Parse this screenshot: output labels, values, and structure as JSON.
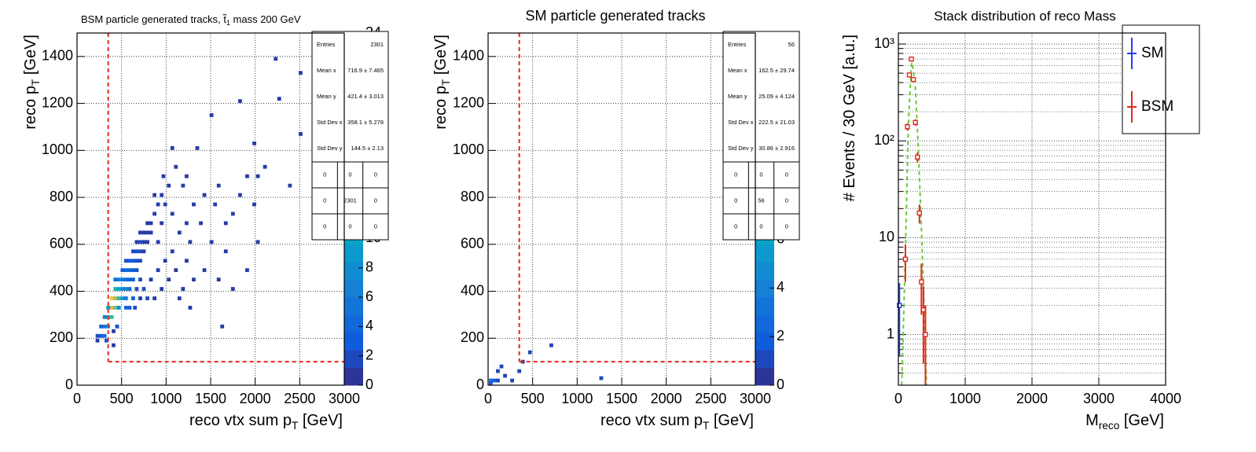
{
  "chart_data": [
    {
      "type": "heatmap",
      "title": [
        "BSM particle generated tracks, t̃",
        "1",
        " mass 200 GeV"
      ],
      "x_label": [
        "reco vtx sum p",
        "T",
        " [GeV]"
      ],
      "y_label": [
        "reco p",
        "T",
        " [GeV]"
      ],
      "xlim": [
        0,
        3000
      ],
      "xticks": [
        0,
        500,
        1000,
        1500,
        2000,
        2500,
        3000
      ],
      "ylim": [
        0,
        1500
      ],
      "yticks": [
        0,
        200,
        400,
        600,
        800,
        1000,
        1200,
        1400
      ],
      "zlim": [
        0,
        24
      ],
      "zticks": [
        0,
        2,
        4,
        6,
        8,
        10,
        12,
        14,
        16,
        18,
        20,
        22,
        24
      ],
      "grid": true,
      "cells": [
        [
          270,
          210,
          3
        ],
        [
          310,
          210,
          5
        ],
        [
          310,
          250,
          6
        ],
        [
          350,
          250,
          8
        ],
        [
          350,
          290,
          12
        ],
        [
          390,
          290,
          14
        ],
        [
          390,
          330,
          20
        ],
        [
          430,
          330,
          16
        ],
        [
          390,
          370,
          22
        ],
        [
          430,
          370,
          18
        ],
        [
          470,
          370,
          14
        ],
        [
          430,
          410,
          12
        ],
        [
          470,
          410,
          10
        ],
        [
          510,
          410,
          8
        ],
        [
          350,
          330,
          10
        ],
        [
          310,
          290,
          7
        ],
        [
          270,
          250,
          4
        ],
        [
          230,
          210,
          2
        ],
        [
          230,
          190,
          1
        ],
        [
          470,
          330,
          8
        ],
        [
          510,
          370,
          9
        ],
        [
          550,
          370,
          6
        ],
        [
          550,
          410,
          7
        ],
        [
          590,
          410,
          5
        ],
        [
          510,
          450,
          6
        ],
        [
          550,
          450,
          5
        ],
        [
          590,
          450,
          4
        ],
        [
          630,
          450,
          3
        ],
        [
          470,
          450,
          7
        ],
        [
          430,
          450,
          5
        ],
        [
          590,
          490,
          4
        ],
        [
          630,
          490,
          3
        ],
        [
          550,
          490,
          4
        ],
        [
          510,
          490,
          3
        ],
        [
          670,
          490,
          2
        ],
        [
          630,
          530,
          3
        ],
        [
          670,
          530,
          2
        ],
        [
          710,
          530,
          2
        ],
        [
          590,
          530,
          3
        ],
        [
          550,
          530,
          2
        ],
        [
          670,
          570,
          2
        ],
        [
          710,
          570,
          2
        ],
        [
          750,
          570,
          1
        ],
        [
          630,
          570,
          2
        ],
        [
          710,
          610,
          2
        ],
        [
          750,
          610,
          1
        ],
        [
          790,
          610,
          1
        ],
        [
          670,
          610,
          1
        ],
        [
          750,
          650,
          1
        ],
        [
          790,
          650,
          1
        ],
        [
          830,
          650,
          1
        ],
        [
          710,
          650,
          1
        ],
        [
          790,
          690,
          1
        ],
        [
          830,
          690,
          1
        ],
        [
          870,
          730,
          1
        ],
        [
          910,
          770,
          1
        ],
        [
          950,
          810,
          1
        ],
        [
          870,
          810,
          1
        ],
        [
          1030,
          850,
          1
        ],
        [
          990,
          770,
          1
        ],
        [
          1070,
          730,
          1
        ],
        [
          950,
          690,
          1
        ],
        [
          910,
          610,
          1
        ],
        [
          1150,
          650,
          1
        ],
        [
          1230,
          690,
          1
        ],
        [
          1310,
          770,
          1
        ],
        [
          1270,
          610,
          1
        ],
        [
          1390,
          690,
          1
        ],
        [
          1430,
          810,
          1
        ],
        [
          1550,
          770,
          1
        ],
        [
          1590,
          850,
          1
        ],
        [
          1670,
          690,
          1
        ],
        [
          1750,
          730,
          1
        ],
        [
          1830,
          810,
          1
        ],
        [
          1910,
          890,
          1
        ],
        [
          1990,
          770,
          1
        ],
        [
          2030,
          890,
          1
        ],
        [
          2110,
          930,
          1
        ],
        [
          1230,
          530,
          1
        ],
        [
          1110,
          490,
          1
        ],
        [
          1030,
          450,
          1
        ],
        [
          950,
          410,
          1
        ],
        [
          870,
          370,
          1
        ],
        [
          790,
          370,
          2
        ],
        [
          750,
          410,
          2
        ],
        [
          710,
          450,
          2
        ],
        [
          830,
          450,
          1
        ],
        [
          910,
          490,
          1
        ],
        [
          990,
          530,
          1
        ],
        [
          1070,
          570,
          1
        ],
        [
          1190,
          410,
          1
        ],
        [
          1310,
          450,
          1
        ],
        [
          1430,
          490,
          1
        ],
        [
          1590,
          450,
          1
        ],
        [
          1670,
          570,
          1
        ],
        [
          1750,
          410,
          1
        ],
        [
          1910,
          490,
          1
        ],
        [
          2030,
          610,
          1
        ],
        [
          1510,
          610,
          1
        ],
        [
          650,
          330,
          2
        ],
        [
          590,
          330,
          3
        ],
        [
          550,
          330,
          4
        ],
        [
          630,
          370,
          3
        ],
        [
          670,
          410,
          2
        ],
        [
          710,
          370,
          1
        ],
        [
          450,
          250,
          2
        ],
        [
          410,
          230,
          1
        ],
        [
          410,
          170,
          1
        ],
        [
          330,
          190,
          2
        ],
        [
          1110,
          930,
          1
        ],
        [
          1190,
          850,
          1
        ],
        [
          1070,
          1010,
          1
        ],
        [
          1510,
          1150,
          1
        ],
        [
          1830,
          1210,
          1
        ],
        [
          2230,
          1390,
          1
        ],
        [
          2510,
          1330,
          1
        ],
        [
          2270,
          1220,
          1
        ],
        [
          2510,
          1070,
          1
        ],
        [
          2390,
          850,
          1
        ],
        [
          1990,
          1030,
          1
        ],
        [
          1350,
          1010,
          1
        ],
        [
          1230,
          890,
          1
        ],
        [
          970,
          890,
          1
        ],
        [
          1630,
          250,
          1
        ],
        [
          1150,
          370,
          1
        ],
        [
          1270,
          330,
          1
        ]
      ],
      "cuts": {
        "x": 350,
        "y": 100,
        "color": "#e8261c"
      },
      "stats": {
        "rows": [
          [
            "Entries",
            "2301"
          ],
          [
            "Mean x",
            "716.9 ± 7.465"
          ],
          [
            "Mean y",
            "421.4 ± 3.013"
          ],
          [
            "Std Dev x",
            "358.1 ± 5.278"
          ],
          [
            "Std Dev y",
            "144.5 ± 2.13"
          ]
        ],
        "grid": [
          [
            0,
            0,
            0
          ],
          [
            0,
            2301,
            0
          ],
          [
            0,
            0,
            0
          ]
        ]
      }
    },
    {
      "type": "heatmap",
      "title": [
        "SM particle generated tracks"
      ],
      "x_label": [
        "reco vtx sum p",
        "T",
        " [GeV]"
      ],
      "y_label": [
        "reco p",
        "T",
        " [GeV]"
      ],
      "xlim": [
        0,
        3000
      ],
      "xticks": [
        0,
        500,
        1000,
        1500,
        2000,
        2500,
        3000
      ],
      "ylim": [
        0,
        1500
      ],
      "yticks": [
        0,
        200,
        400,
        600,
        800,
        1000,
        1200,
        1400
      ],
      "zlim": [
        0,
        14.5
      ],
      "zticks": [
        0,
        2,
        4,
        6,
        8,
        10,
        12,
        14
      ],
      "grid": true,
      "cells": [
        [
          30,
          20,
          3
        ],
        [
          70,
          20,
          2
        ],
        [
          110,
          60,
          1
        ],
        [
          150,
          80,
          1
        ],
        [
          190,
          40,
          1
        ],
        [
          110,
          20,
          1
        ],
        [
          270,
          20,
          1
        ],
        [
          350,
          60,
          1
        ],
        [
          470,
          140,
          1
        ],
        [
          710,
          170,
          1
        ],
        [
          1270,
          30,
          1
        ],
        [
          390,
          100,
          1
        ],
        [
          30,
          10,
          2
        ]
      ],
      "cuts": {
        "x": 350,
        "y": 100,
        "color": "#e8261c"
      },
      "stats": {
        "rows": [
          [
            "Entries",
            "56"
          ],
          [
            "Mean x",
            "162.5 ± 29.74"
          ],
          [
            "Mean y",
            "25.09 ± 4.124"
          ],
          [
            "Std Dev x",
            "222.5 ± 21.03"
          ],
          [
            "Std Dev y",
            "30.86 ± 2.916"
          ]
        ],
        "grid": [
          [
            0,
            0,
            0
          ],
          [
            0,
            56,
            0
          ],
          [
            0,
            0,
            0
          ]
        ]
      }
    },
    {
      "type": "errorbar",
      "title": [
        "Stack distribution of reco Mass"
      ],
      "x_label": [
        "M",
        "reco",
        " [GeV]"
      ],
      "y_label": [
        "# Events / 30 GeV [a.u.]"
      ],
      "xlim": [
        0,
        4000
      ],
      "xticks": [
        0,
        1000,
        2000,
        3000,
        4000
      ],
      "ylim": [
        0.3,
        1300
      ],
      "log_y": true,
      "yticks": [
        1,
        10,
        {
          "value": 100,
          "label": "10²"
        },
        {
          "value": 1000,
          "label": "10³"
        }
      ],
      "yticks_minor": [
        0.4,
        0.5,
        0.6,
        0.7,
        0.8,
        0.9,
        2,
        3,
        4,
        5,
        6,
        7,
        8,
        9,
        20,
        30,
        40,
        50,
        60,
        70,
        80,
        90,
        200,
        300,
        400,
        500,
        600,
        700,
        800,
        900
      ],
      "grid": true,
      "series": [
        {
          "name": "SM",
          "color": "#1f3fff",
          "x": [
            15
          ],
          "values": [
            2
          ],
          "errors": [
            1.4
          ]
        },
        {
          "name": "BSM",
          "color": "#e8261c",
          "x": [
            105,
            135,
            165,
            195,
            225,
            255,
            285,
            315,
            345,
            375,
            405
          ],
          "values": [
            6,
            140,
            480,
            700,
            430,
            155,
            68,
            18,
            3.5,
            1.8,
            1
          ],
          "errors": [
            2.5,
            12,
            22,
            26,
            21,
            12,
            8,
            4,
            1.9,
            1.3,
            1
          ]
        }
      ],
      "curve": {
        "color": "#6cc93a",
        "x": [
          50,
          100,
          150,
          200,
          250,
          300,
          350,
          400,
          420
        ],
        "values": [
          0.3,
          5,
          150,
          700,
          400,
          80,
          10,
          1,
          0.3
        ]
      }
    }
  ]
}
